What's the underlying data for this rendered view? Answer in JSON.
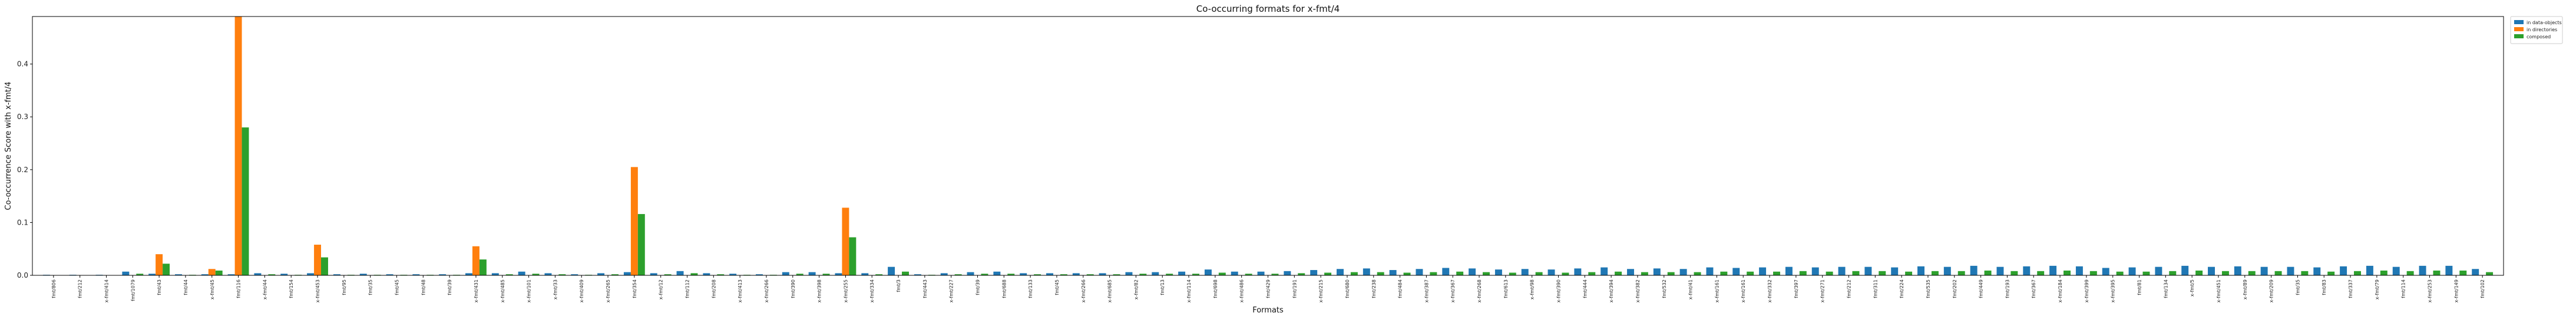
{
  "chart_data": {
    "type": "bar",
    "title": "Co-occurring formats for x-fmt/4",
    "xlabel": "Formats",
    "ylabel": "Co-occurrence Score with x-fmt/4",
    "ylim": [
      0,
      0.49
    ],
    "yticks": [
      0.0,
      0.1,
      0.2,
      0.3,
      0.4
    ],
    "ytick_labels": [
      "0.0",
      "0.1",
      "0.2",
      "0.3",
      "0.4"
    ],
    "grid": false,
    "legend_position": "upper right outside",
    "categories": [
      "fmt/806",
      "fmt/212",
      "x-fmt/414",
      "fmt/1079",
      "fmt/43",
      "fmt/44",
      "x-fmt/45",
      "fmt/116",
      "x-fmt/44",
      "fmt/154",
      "x-fmt/453",
      "fmt/95",
      "fmt/35",
      "fmt/45",
      "fmt/48",
      "fmt/39",
      "x-fmt/431",
      "x-fmt/485",
      "x-fmt/101",
      "x-fmt/33",
      "x-fmt/409",
      "x-fmt/265",
      "fmt/354",
      "x-fmt/12",
      "fmt/112",
      "fmt/208",
      "x-fmt/413",
      "x-fmt/266",
      "fmt/390",
      "x-fmt/398",
      "x-fmt/255",
      "x-fmt/334",
      "fmt/3",
      "fmt/443",
      "x-fmt/227",
      "fmt/39",
      "fmt/688",
      "fmt/133",
      "fmt/45",
      "x-fmt/266",
      "x-fmt/685",
      "x-fmt/82",
      "fmt/13",
      "x-fmt/114",
      "fmt/698",
      "x-fmt/486",
      "fmt/429",
      "fmt/191",
      "x-fmt/215",
      "fmt/680",
      "fmt/238",
      "fmt/484",
      "x-fmt/387",
      "x-fmt/367",
      "x-fmt/268",
      "fmt/613",
      "x-fmt/98",
      "x-fmt/390",
      "fmt/444",
      "x-fmt/394",
      "x-fmt/382",
      "fmt/532",
      "x-fmt/41",
      "x-fmt/161",
      "x-fmt/161",
      "x-fmt/332",
      "fmt/397",
      "x-fmt/271",
      "fmt/212",
      "fmt/311",
      "fmt/224",
      "fmt/535",
      "fmt/202",
      "fmt/449",
      "fmt/193",
      "fmt/367",
      "x-fmt/184",
      "x-fmt/399",
      "x-fmt/395",
      "fmt/81",
      "fmt/134",
      "x-fmt/5",
      "x-fmt/451",
      "x-fmt/89",
      "x-fmt/209",
      "fmt/35",
      "fmt/83",
      "fmt/337",
      "x-fmt/79",
      "fmt/114",
      "x-fmt/253",
      "x-fmt/149",
      "fmt/102"
    ],
    "series": [
      {
        "name": "in data-objects",
        "color": "#1f77b4",
        "values": [
          0.001,
          0.001,
          0.001,
          0.007,
          0.003,
          0.002,
          0.002,
          0.002,
          0.004,
          0.003,
          0.004,
          0.002,
          0.003,
          0.002,
          0.002,
          0.002,
          0.004,
          0.004,
          0.007,
          0.004,
          0.002,
          0.004,
          0.006,
          0.004,
          0.008,
          0.004,
          0.003,
          0.002,
          0.006,
          0.006,
          0.004,
          0.004,
          0.016,
          0.002,
          0.004,
          0.006,
          0.007,
          0.004,
          0.004,
          0.004,
          0.004,
          0.006,
          0.006,
          0.007,
          0.011,
          0.007,
          0.007,
          0.008,
          0.01,
          0.012,
          0.013,
          0.01,
          0.012,
          0.014,
          0.013,
          0.011,
          0.012,
          0.011,
          0.013,
          0.015,
          0.012,
          0.013,
          0.012,
          0.015,
          0.014,
          0.015,
          0.016,
          0.015,
          0.016,
          0.016,
          0.015,
          0.017,
          0.016,
          0.018,
          0.016,
          0.017,
          0.018,
          0.017,
          0.014,
          0.015,
          0.016,
          0.018,
          0.016,
          0.017,
          0.016,
          0.016,
          0.015,
          0.017,
          0.018,
          0.016,
          0.018,
          0.018,
          0.012
        ]
      },
      {
        "name": "in directories",
        "color": "#ff7f0e",
        "values": [
          0.0,
          0.0,
          0.0,
          0.0,
          0.04,
          0.0,
          0.012,
          0.49,
          0.0,
          0.0,
          0.058,
          0.0,
          0.0,
          0.0,
          0.0,
          0.0,
          0.055,
          0.0,
          0.0,
          0.0,
          0.0,
          0.0,
          0.205,
          0.0,
          0.0,
          0.0,
          0.0,
          0.0,
          0.0,
          0.0,
          0.128,
          0.0,
          0.0,
          0.0,
          0.0,
          0.0,
          0.0,
          0.0,
          0.0,
          0.0,
          0.0,
          0.0,
          0.0,
          0.0,
          0.0,
          0.0,
          0.0,
          0.0,
          0.0,
          0.0,
          0.0,
          0.0,
          0.0,
          0.0,
          0.0,
          0.0,
          0.0,
          0.0,
          0.0,
          0.0,
          0.0,
          0.0,
          0.0,
          0.0,
          0.0,
          0.0,
          0.0,
          0.0,
          0.0,
          0.0,
          0.0,
          0.0,
          0.0,
          0.0,
          0.0,
          0.0,
          0.0,
          0.0,
          0.0,
          0.0,
          0.0,
          0.0,
          0.0,
          0.0,
          0.0,
          0.0,
          0.0,
          0.0,
          0.0,
          0.0,
          0.0,
          0.0,
          0.0
        ]
      },
      {
        "name": "composed",
        "color": "#2ca02c",
        "values": [
          0.0,
          0.0,
          0.0,
          0.003,
          0.022,
          0.001,
          0.009,
          0.28,
          0.002,
          0.001,
          0.034,
          0.001,
          0.001,
          0.001,
          0.001,
          0.001,
          0.03,
          0.002,
          0.003,
          0.002,
          0.001,
          0.002,
          0.116,
          0.002,
          0.004,
          0.002,
          0.001,
          0.001,
          0.003,
          0.003,
          0.072,
          0.002,
          0.007,
          0.001,
          0.002,
          0.003,
          0.003,
          0.002,
          0.002,
          0.002,
          0.002,
          0.003,
          0.003,
          0.003,
          0.005,
          0.003,
          0.003,
          0.004,
          0.005,
          0.006,
          0.006,
          0.005,
          0.006,
          0.007,
          0.006,
          0.005,
          0.006,
          0.005,
          0.006,
          0.007,
          0.006,
          0.006,
          0.006,
          0.007,
          0.007,
          0.007,
          0.008,
          0.007,
          0.008,
          0.008,
          0.007,
          0.008,
          0.008,
          0.009,
          0.008,
          0.008,
          0.009,
          0.008,
          0.007,
          0.007,
          0.008,
          0.009,
          0.008,
          0.008,
          0.008,
          0.008,
          0.007,
          0.008,
          0.009,
          0.008,
          0.009,
          0.009,
          0.006
        ]
      }
    ]
  }
}
